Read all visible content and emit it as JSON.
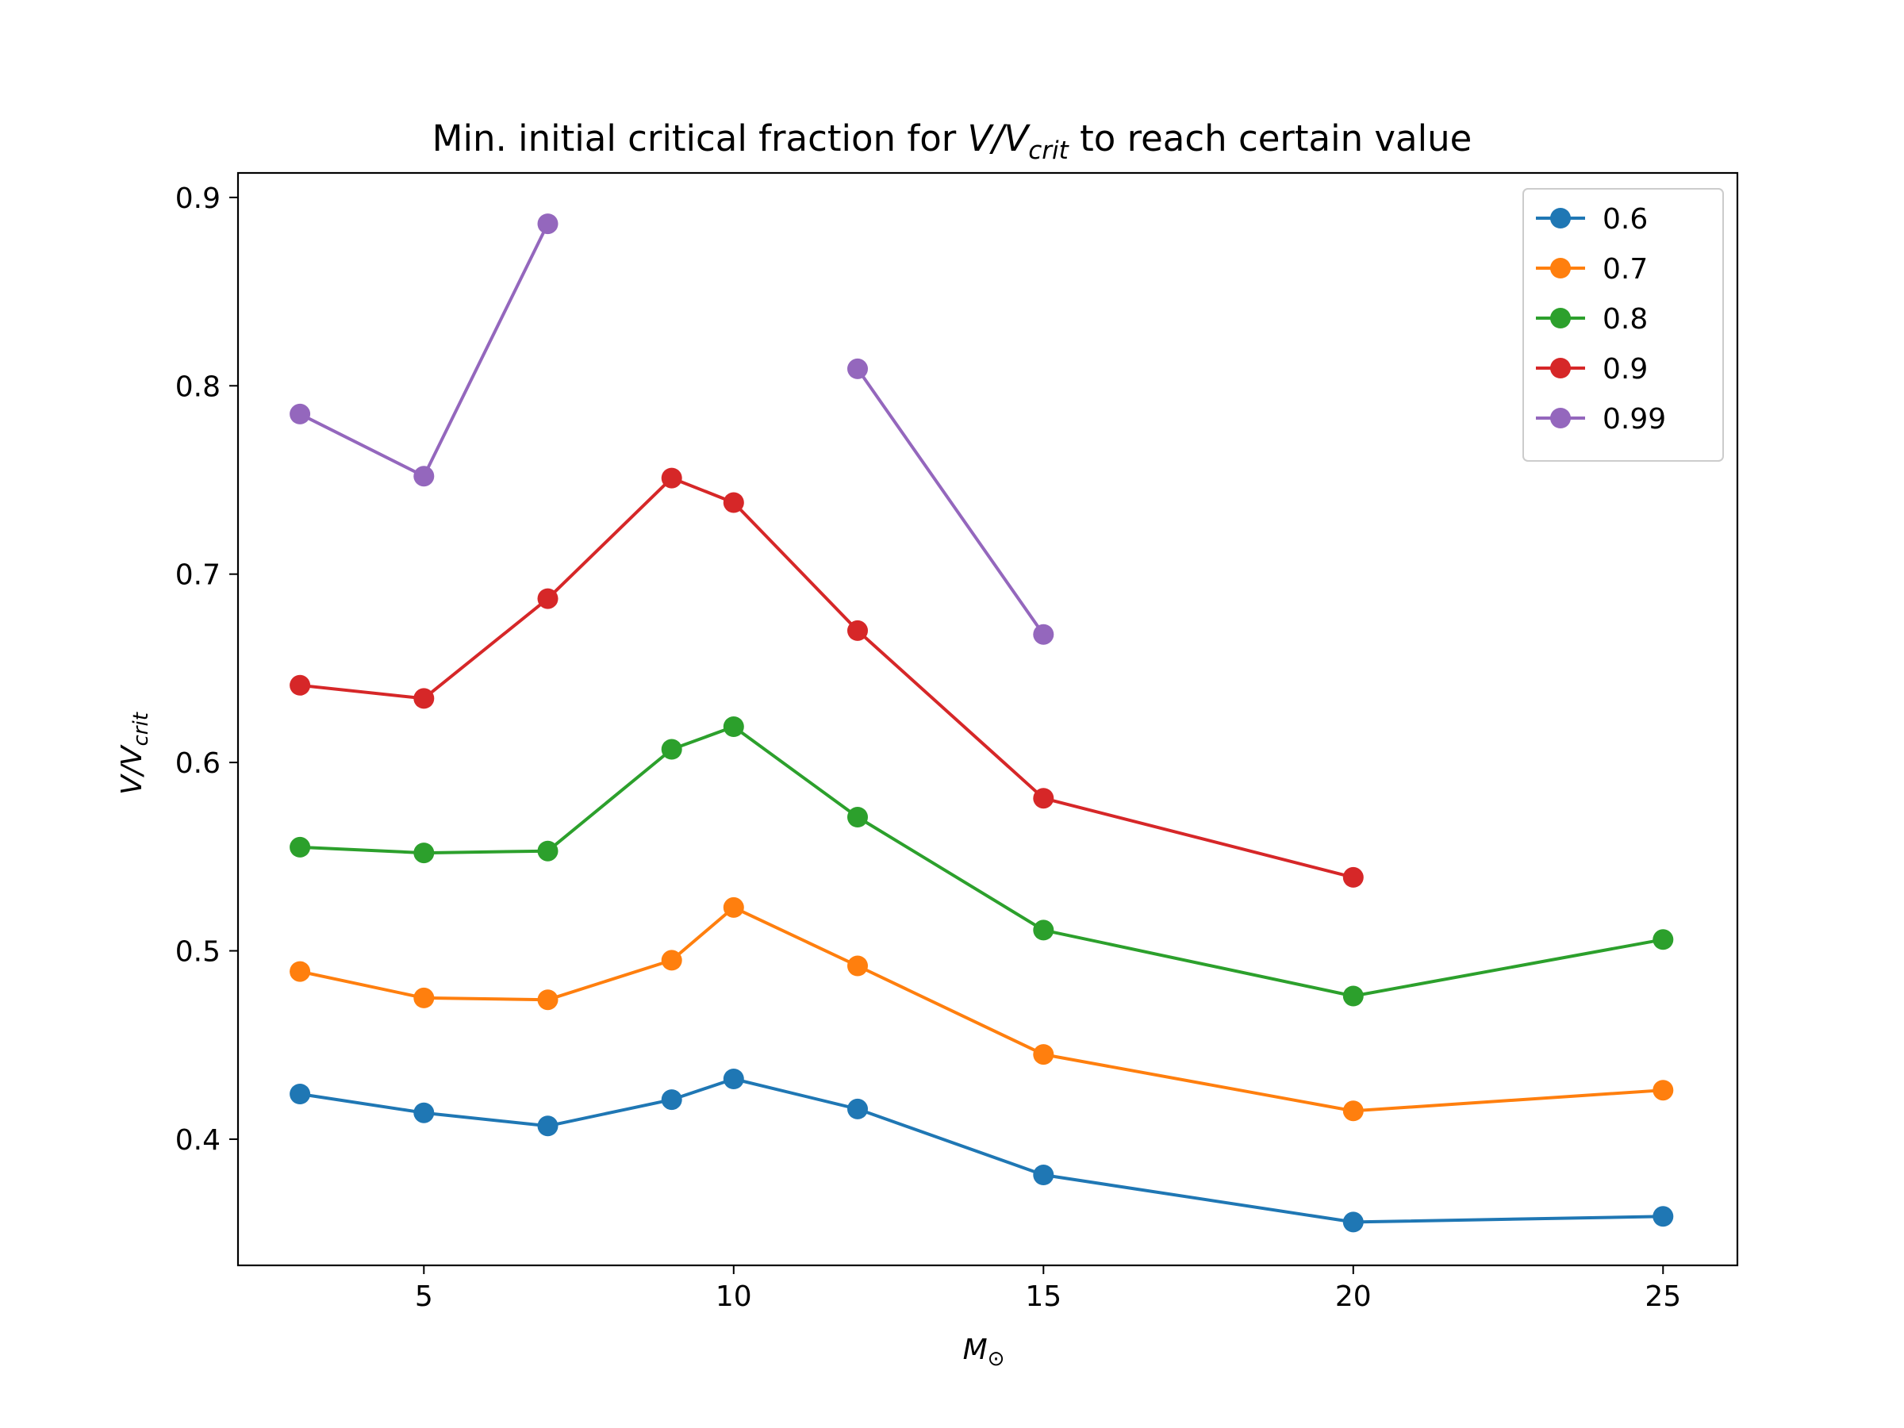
{
  "chart_data": {
    "type": "line",
    "title": {
      "prefix": "Min. initial critical fraction for ",
      "math_main": "V/V",
      "math_sub": "crit",
      "suffix": " to reach certain value"
    },
    "xlabel": {
      "main": "M",
      "sub": "⊙"
    },
    "ylabel": {
      "main": "V/V",
      "sub": "crit"
    },
    "xlim": [
      2.0,
      26.2
    ],
    "ylim": [
      0.333,
      0.913
    ],
    "xticks": [
      5,
      10,
      15,
      20,
      25
    ],
    "xtick_labels": [
      "5",
      "10",
      "15",
      "20",
      "25"
    ],
    "yticks": [
      0.4,
      0.5,
      0.6,
      0.7,
      0.8,
      0.9
    ],
    "ytick_labels": [
      "0.4",
      "0.5",
      "0.6",
      "0.7",
      "0.8",
      "0.9"
    ],
    "grid": false,
    "legend_position": "top-right",
    "series": [
      {
        "name": "0.6",
        "color": "#1f77b4",
        "x": [
          3,
          5,
          7,
          9,
          10,
          12,
          15,
          20,
          25
        ],
        "y": [
          0.424,
          0.414,
          0.407,
          0.421,
          0.432,
          0.416,
          0.381,
          0.356,
          0.359
        ]
      },
      {
        "name": "0.7",
        "color": "#ff7f0e",
        "x": [
          3,
          5,
          7,
          9,
          10,
          12,
          15,
          20,
          25
        ],
        "y": [
          0.489,
          0.475,
          0.474,
          0.495,
          0.523,
          0.492,
          0.445,
          0.415,
          0.426
        ]
      },
      {
        "name": "0.8",
        "color": "#2ca02c",
        "x": [
          3,
          5,
          7,
          9,
          10,
          12,
          15,
          20,
          25
        ],
        "y": [
          0.555,
          0.552,
          0.553,
          0.607,
          0.619,
          0.571,
          0.511,
          0.476,
          0.506
        ]
      },
      {
        "name": "0.9",
        "color": "#d62728",
        "x": [
          3,
          5,
          7,
          9,
          10,
          12,
          15,
          20
        ],
        "y": [
          0.641,
          0.634,
          0.687,
          0.751,
          0.738,
          0.67,
          0.581,
          0.539
        ]
      },
      {
        "name": "0.99",
        "color": "#9467bd",
        "x": [
          3,
          5,
          7,
          12,
          15
        ],
        "y": [
          0.785,
          0.752,
          0.886,
          0.809,
          0.668
        ],
        "segments": [
          [
            0,
            3
          ],
          [
            3,
            5
          ]
        ]
      }
    ]
  }
}
